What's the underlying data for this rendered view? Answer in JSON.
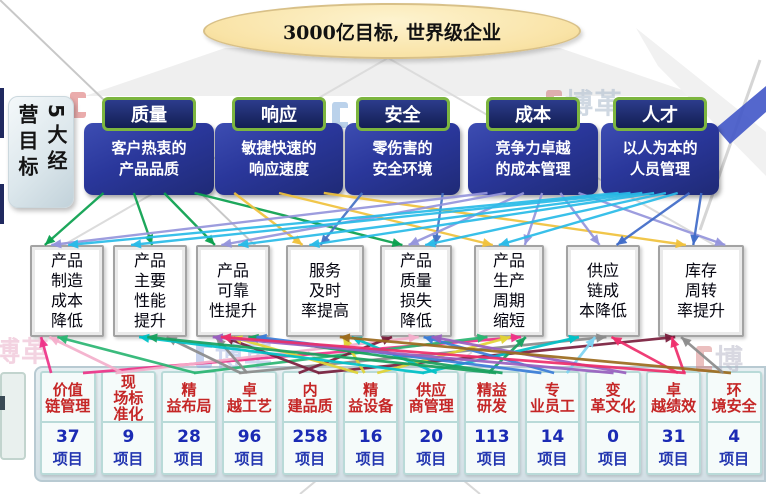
{
  "title": "3000亿目标, 世界级企业",
  "side_label": "5大经营目标",
  "goals": [
    {
      "name": "质量",
      "desc": "客户热衷的\n产品品质"
    },
    {
      "name": "响应",
      "desc": "敏捷快速的\n响应速度"
    },
    {
      "name": "安全",
      "desc": "零伤害的\n安全环境"
    },
    {
      "name": "成本",
      "desc": "竞争力卓越\n的成本管理"
    },
    {
      "name": "人才",
      "desc": "以人为本的\n人员管理"
    }
  ],
  "improvements": [
    "产品\n制造\n成本\n降低",
    "产品\n主要\n性能\n提升",
    "产品\n可靠\n性提升",
    "服务\n及时\n率提高",
    "产品\n质量\n损失\n降低",
    "产品\n生产\n周期\n缩短",
    "供应\n链成\n本降低",
    "库存\n周转\n率提升"
  ],
  "categories": [
    {
      "name": "价值\n链管理",
      "count": "37",
      "unit": "项目"
    },
    {
      "name": "现\n场标\n准化",
      "count": "9",
      "unit": "项目"
    },
    {
      "name": "精\n益布局",
      "count": "28",
      "unit": "项目"
    },
    {
      "name": "卓\n越工艺",
      "count": "96",
      "unit": "项目"
    },
    {
      "name": "内\n建品质",
      "count": "258",
      "unit": "项目"
    },
    {
      "name": "精\n益设备",
      "count": "16",
      "unit": "项目"
    },
    {
      "name": "供应\n商管理",
      "count": "20",
      "unit": "项目"
    },
    {
      "name": "精益\n研发",
      "count": "113",
      "unit": "项目"
    },
    {
      "name": "专\n业员工",
      "count": "14",
      "unit": "项目"
    },
    {
      "name": "变\n革文化",
      "count": "0",
      "unit": "项目"
    },
    {
      "name": "卓\n越绩效",
      "count": "31",
      "unit": "项目"
    },
    {
      "name": "环\n境安全",
      "count": "4",
      "unit": "项目"
    }
  ],
  "watermarks": [
    {
      "text": ""
    },
    {
      "text": ""
    },
    {
      "text": "博革"
    },
    {
      "text": "博革"
    },
    {
      "text": "博革"
    },
    {
      "text": "博"
    }
  ],
  "colors": {
    "goal_blue": "#2A379B",
    "goal_border_green": "#7CB53F",
    "category_red": "#C52626",
    "count_blue": "#1B2BB4",
    "ellipse_yellow": "#F9E3A6"
  },
  "connections": {
    "top": [
      {
        "f": 0,
        "t": 0,
        "c": "#0AA04E"
      },
      {
        "f": 0,
        "t": 1,
        "c": "#0AA04E"
      },
      {
        "f": 0,
        "t": 2,
        "c": "#0AA04E"
      },
      {
        "f": 0,
        "t": 4,
        "c": "#0AA04E"
      },
      {
        "f": 1,
        "t": 3,
        "c": "#F0C23C"
      },
      {
        "f": 1,
        "t": 5,
        "c": "#F0C23C"
      },
      {
        "f": 1,
        "t": 7,
        "c": "#F0C23C"
      },
      {
        "f": 2,
        "t": 3,
        "c": "#4472C4"
      },
      {
        "f": 2,
        "t": 4,
        "c": "#4472C4"
      },
      {
        "f": 3,
        "t": 0,
        "c": "#9595DC"
      },
      {
        "f": 3,
        "t": 2,
        "c": "#9595DC"
      },
      {
        "f": 3,
        "t": 4,
        "c": "#9595DC"
      },
      {
        "f": 3,
        "t": 5,
        "c": "#9595DC"
      },
      {
        "f": 3,
        "t": 6,
        "c": "#9595DC"
      },
      {
        "f": 3,
        "t": 7,
        "c": "#9595DC"
      },
      {
        "f": 4,
        "t": 0,
        "c": "#29BBE8"
      },
      {
        "f": 4,
        "t": 1,
        "c": "#29BBE8"
      },
      {
        "f": 4,
        "t": 2,
        "c": "#29BBE8"
      },
      {
        "f": 4,
        "t": 3,
        "c": "#29BBE8"
      },
      {
        "f": 4,
        "t": 4,
        "c": "#29BBE8"
      },
      {
        "f": 4,
        "t": 5,
        "c": "#29BBE8"
      },
      {
        "f": 4,
        "t": 6,
        "c": "#3F6BC8"
      },
      {
        "f": 4,
        "t": 7,
        "c": "#3F6BC8"
      }
    ],
    "bottom": [
      {
        "f": 0,
        "t": 0,
        "c": "#EE3388"
      },
      {
        "f": 0,
        "t": 5,
        "c": "#EE3388"
      },
      {
        "f": 1,
        "t": 0,
        "c": "#F4AFCB"
      },
      {
        "f": 1,
        "t": 4,
        "c": "#F4AFCB"
      },
      {
        "f": 2,
        "t": 0,
        "c": "#2BB673"
      },
      {
        "f": 2,
        "t": 5,
        "c": "#2BB673"
      },
      {
        "f": 3,
        "t": 1,
        "c": "#8C8C8C"
      },
      {
        "f": 3,
        "t": 2,
        "c": "#8C8C8C"
      },
      {
        "f": 3,
        "t": 6,
        "c": "#8C8C8C"
      },
      {
        "f": 4,
        "t": 2,
        "c": "#7A1F3D"
      },
      {
        "f": 4,
        "t": 4,
        "c": "#7A1F3D"
      },
      {
        "f": 4,
        "t": 7,
        "c": "#7A1F3D"
      },
      {
        "f": 5,
        "t": 2,
        "c": "#E2D435"
      },
      {
        "f": 5,
        "t": 3,
        "c": "#E2D435"
      },
      {
        "f": 5,
        "t": 5,
        "c": "#E2D435"
      },
      {
        "f": 6,
        "t": 1,
        "c": "#00C2C7"
      },
      {
        "f": 6,
        "t": 3,
        "c": "#00C2C7"
      },
      {
        "f": 6,
        "t": 6,
        "c": "#00C2C7"
      },
      {
        "f": 7,
        "t": 1,
        "c": "#19A15F"
      },
      {
        "f": 7,
        "t": 2,
        "c": "#19A15F"
      },
      {
        "f": 7,
        "t": 5,
        "c": "#19A15F"
      },
      {
        "f": 8,
        "t": 2,
        "c": "#3B7DD8"
      },
      {
        "f": 8,
        "t": 4,
        "c": "#3B7DD8"
      },
      {
        "f": 8,
        "t": 6,
        "c": "#7FD4F2"
      },
      {
        "f": 9,
        "t": 2,
        "c": "#9A60C0"
      },
      {
        "f": 9,
        "t": 4,
        "c": "#9A60C0"
      },
      {
        "f": 10,
        "t": 2,
        "c": "#EE2E6B"
      },
      {
        "f": 10,
        "t": 6,
        "c": "#EE2E6B"
      },
      {
        "f": 10,
        "t": 7,
        "c": "#EE2E6B"
      },
      {
        "f": 11,
        "t": 3,
        "c": "#9C6B1E"
      },
      {
        "f": 11,
        "t": 7,
        "c": "#8C8C8C"
      }
    ]
  }
}
